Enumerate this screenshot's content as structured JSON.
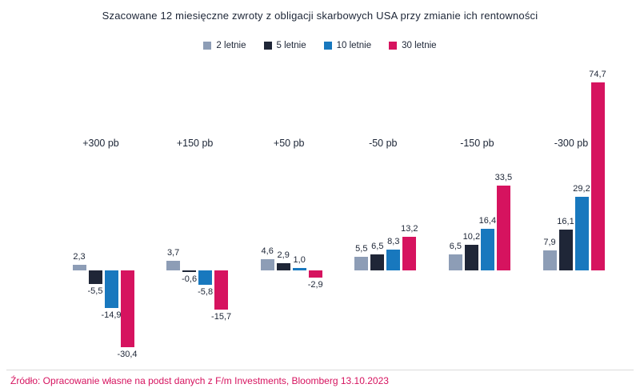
{
  "title": "Szacowane 12 miesięczne zwroty z obligacji skarbowych USA przy zmianie ich rentowności",
  "source": "Źródło: Opracowanie własne na podst danych z F/m Investments, Bloomberg 13.10.2023",
  "chart_data": {
    "type": "bar",
    "title": "Szacowane 12 miesięczne zwroty z obligacji skarbowych USA przy zmianie ich rentowności",
    "categories": [
      "+300 pb",
      "+150 pb",
      "+50 pb",
      "-50 pb",
      "-150 pb",
      "-300 pb"
    ],
    "series": [
      {
        "name": "2 letnie",
        "color": "#8D9DB6",
        "values": [
          2.3,
          3.7,
          4.6,
          5.5,
          6.5,
          7.9
        ]
      },
      {
        "name": "5 letnie",
        "color": "#1F2637",
        "values": [
          -5.5,
          -0.6,
          2.9,
          6.5,
          10.2,
          16.1
        ]
      },
      {
        "name": "10 letnie",
        "color": "#1878BE",
        "values": [
          -14.9,
          -5.8,
          1.0,
          8.3,
          16.4,
          29.2
        ]
      },
      {
        "name": "30 letnie",
        "color": "#D6135F",
        "values": [
          -30.4,
          -15.7,
          -2.9,
          13.2,
          33.5,
          74.7
        ]
      }
    ],
    "ylim": [
      -35,
      80
    ],
    "grid": false,
    "legend_position": "top",
    "value_labels": true,
    "decimal_separator": ",",
    "xlabel": "",
    "ylabel": ""
  }
}
